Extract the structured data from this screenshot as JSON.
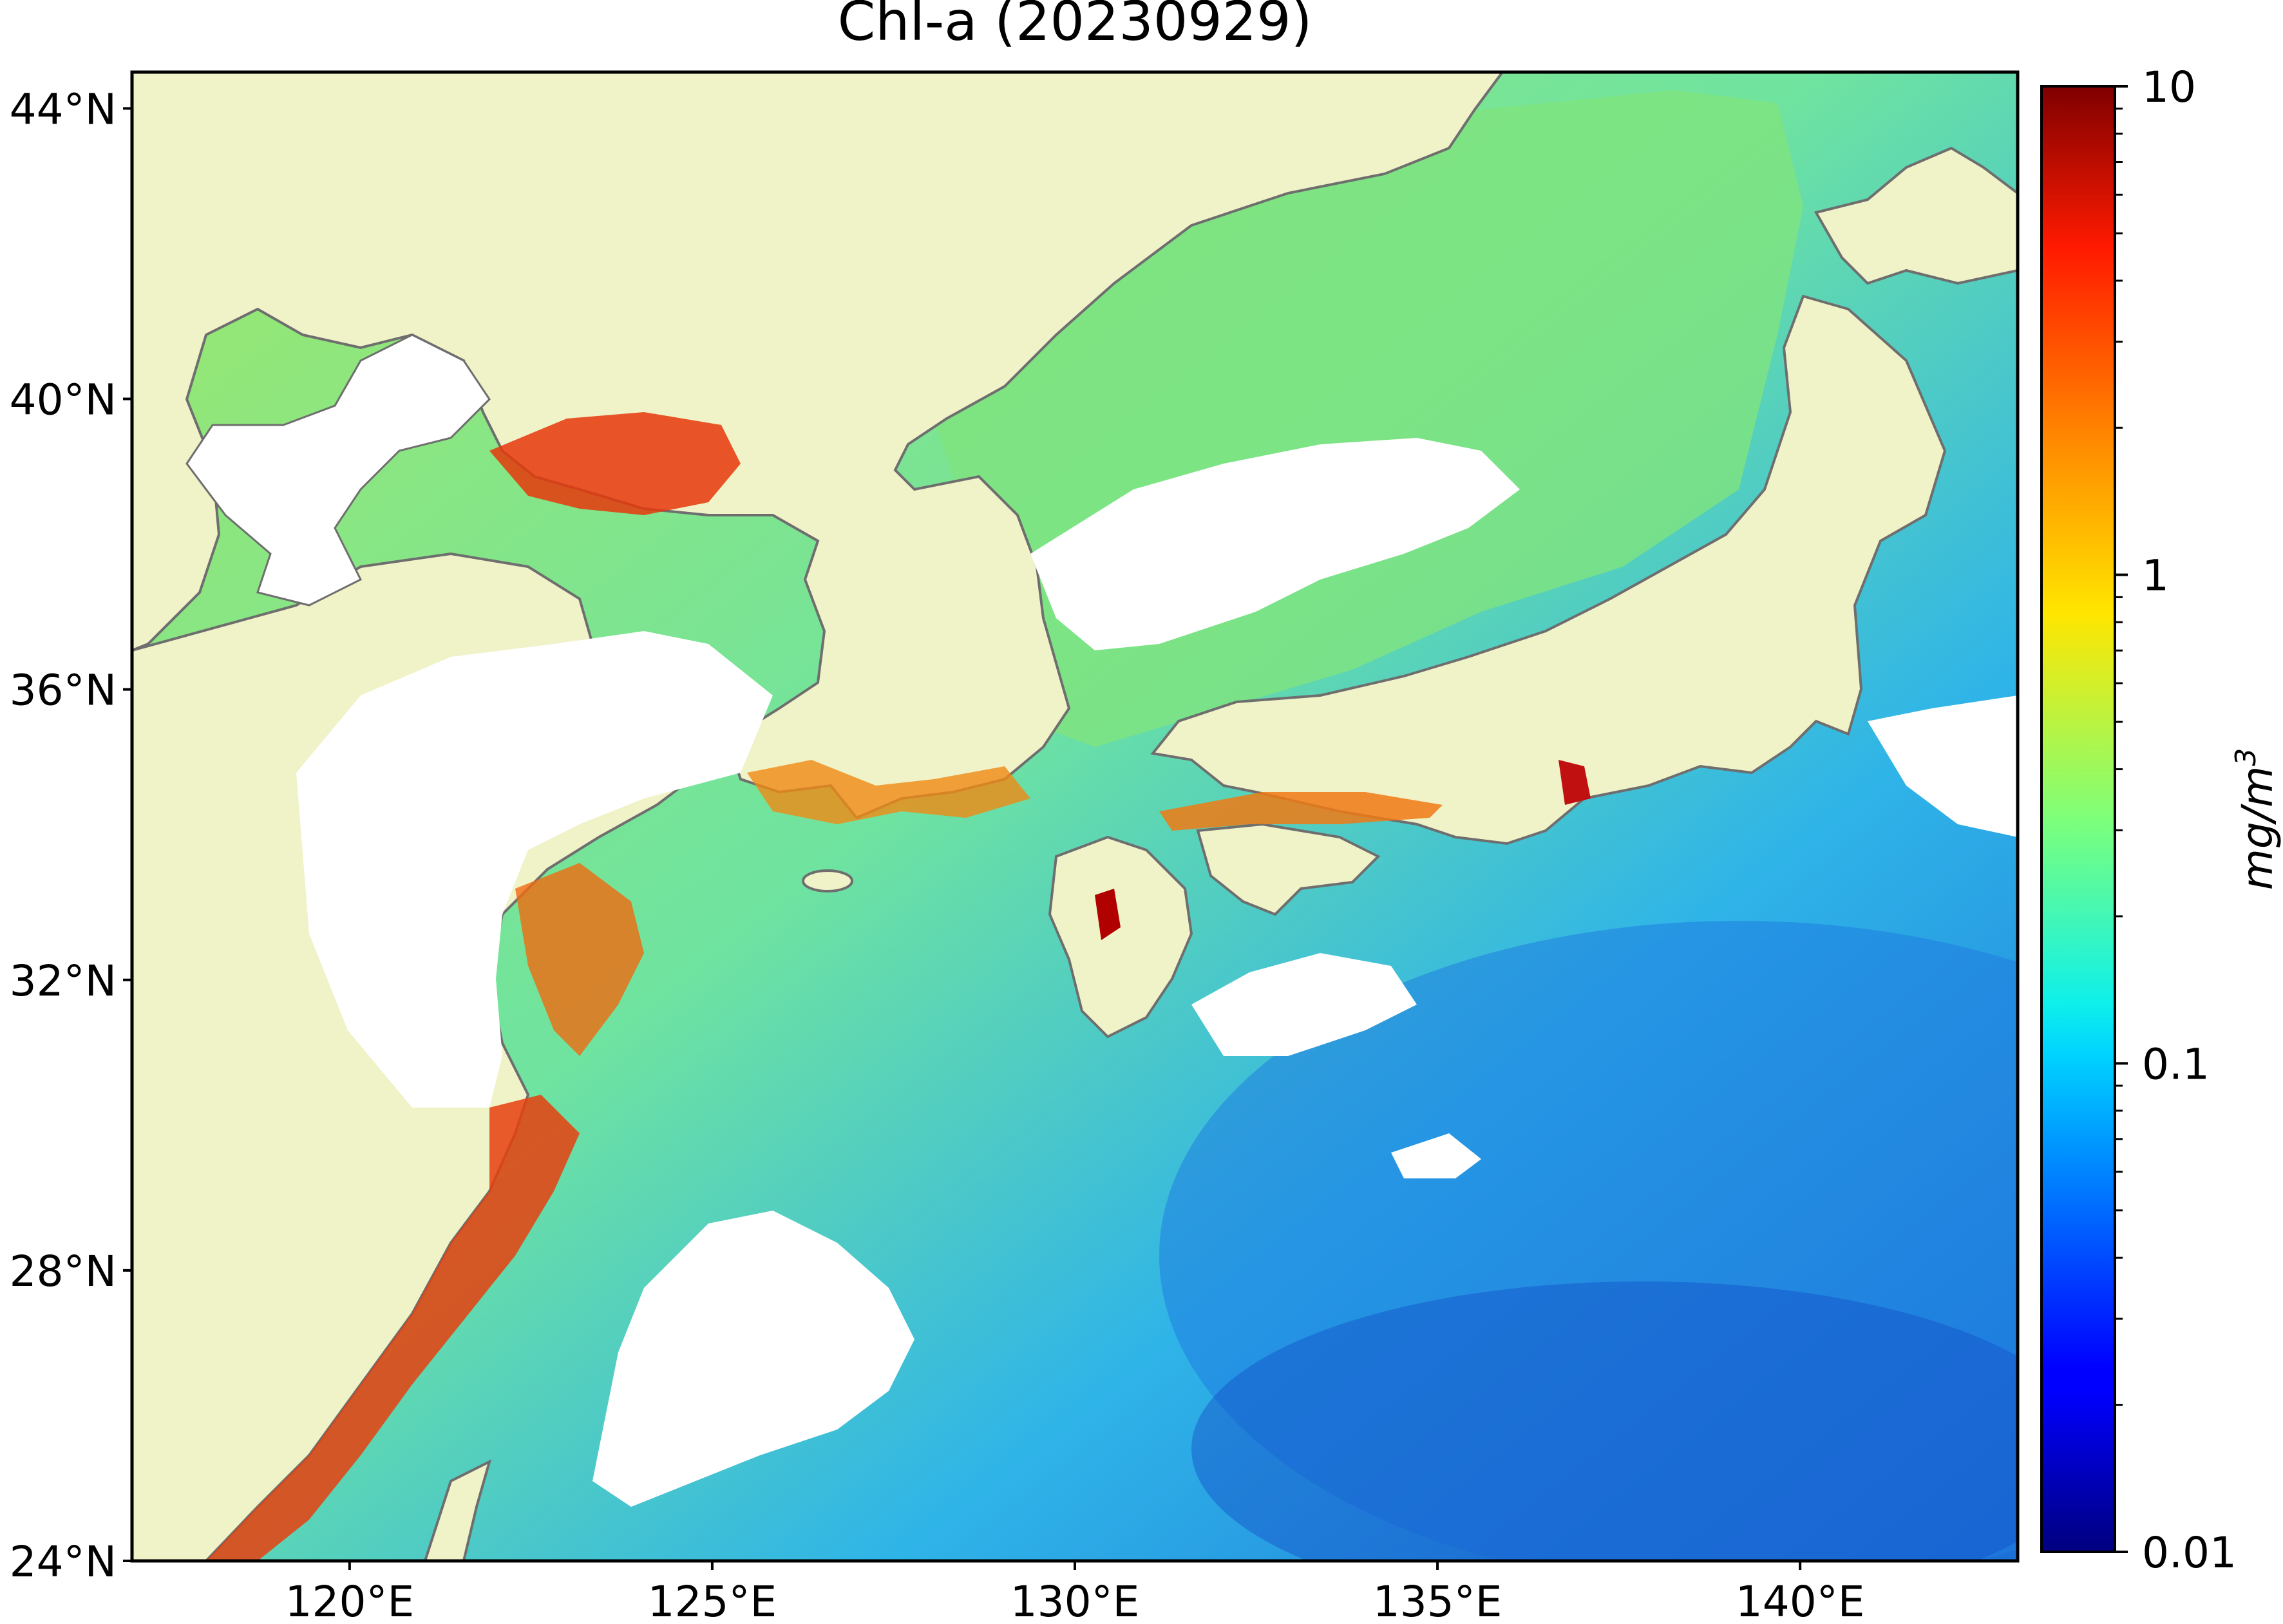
{
  "title": "Chl-a (20230929)",
  "lat_labels": [
    {
      "value": 44,
      "text": "44°N"
    },
    {
      "value": 40,
      "text": "40°N"
    },
    {
      "value": 36,
      "text": "36°N"
    },
    {
      "value": 32,
      "text": "32°N"
    },
    {
      "value": 28,
      "text": "28°N"
    },
    {
      "value": 24,
      "text": "24°N"
    }
  ],
  "lon_labels": [
    {
      "value": 120,
      "text": "120°E"
    },
    {
      "value": 125,
      "text": "125°E"
    },
    {
      "value": 130,
      "text": "130°E"
    },
    {
      "value": 135,
      "text": "135°E"
    },
    {
      "value": 140,
      "text": "140°E"
    }
  ],
  "extent": {
    "lon_min": 117,
    "lon_max": 143,
    "lat_min": 24,
    "lat_max": 44.5
  },
  "colorbar": {
    "label": "mg/m",
    "label_sup": "3",
    "scale": "log",
    "ticks": [
      {
        "value": 10,
        "text": "10"
      },
      {
        "value": 1,
        "text": "1"
      },
      {
        "value": 0.1,
        "text": "0.1"
      },
      {
        "value": 0.01,
        "text": "0.01"
      }
    ],
    "range": [
      0.01,
      10
    ],
    "colormap": "jet"
  },
  "colors": {
    "land": "#f0f2c8",
    "coast": "#6e6e6e",
    "no_data": "#ffffff",
    "high": "#d42a08",
    "mid": "#a8ec5c",
    "low": "#1a8ee0"
  }
}
